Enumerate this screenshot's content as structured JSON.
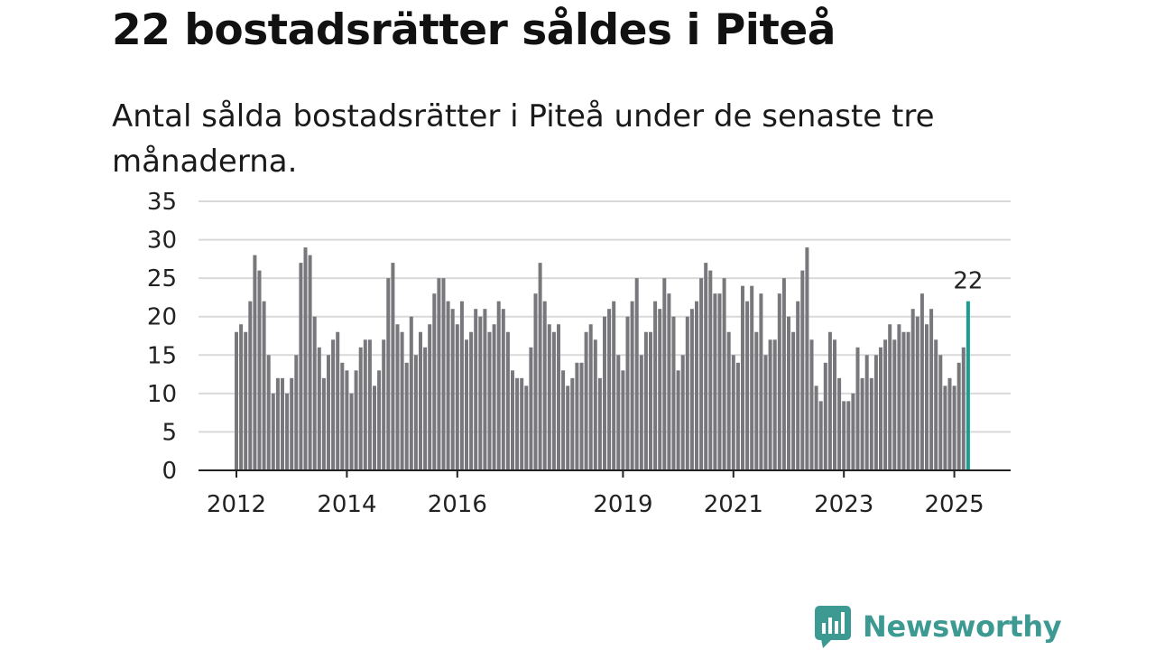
{
  "header": {
    "title": "22 bostadsrätter såldes i Piteå",
    "subtitle": "Antal sålda bostadsrätter i Piteå under de senaste tre månaderna."
  },
  "brand": {
    "name": "Newsworthy",
    "color": "#3d9a93"
  },
  "colors": {
    "bar": "#77777c",
    "highlight": "#1a9d91",
    "grid": "#d9d9d9",
    "axis": "#222222"
  },
  "chart_data": {
    "type": "bar",
    "title": "",
    "xlabel": "",
    "ylabel": "",
    "ylim": [
      0,
      35
    ],
    "yticks": [
      0,
      5,
      10,
      15,
      20,
      25,
      30,
      35
    ],
    "grid": true,
    "x_tick_labels": [
      "2012",
      "2014",
      "2016",
      "2019",
      "2021",
      "2023",
      "2025"
    ],
    "highlight_label": "22",
    "series": [
      {
        "values": [
          18,
          19,
          18,
          22,
          28,
          26,
          22,
          15,
          10,
          12,
          12,
          10,
          12,
          15,
          27,
          29,
          28,
          20,
          16,
          12,
          15,
          17,
          18,
          14,
          13,
          10,
          13,
          16,
          17,
          17,
          11,
          13,
          17,
          25,
          27,
          19,
          18,
          14,
          20,
          15,
          18,
          16,
          19,
          23,
          25,
          25,
          22,
          21,
          19,
          22,
          17,
          18,
          21,
          20,
          21,
          18,
          19,
          22,
          21,
          18,
          13,
          12,
          12,
          11,
          16,
          23,
          27,
          22,
          19,
          18,
          19,
          13,
          11,
          12,
          14,
          14,
          18,
          19,
          17,
          12,
          20,
          21,
          22,
          15,
          13,
          20,
          22,
          25,
          15,
          18,
          18,
          22,
          21,
          25,
          23,
          20,
          13,
          15,
          20,
          21,
          22,
          25,
          27,
          26,
          23,
          23,
          25,
          18,
          15,
          14,
          24,
          22,
          24,
          18,
          23,
          15,
          17,
          17,
          23,
          25,
          20,
          18,
          22,
          26,
          29,
          17,
          11,
          9,
          14,
          18,
          17,
          12,
          9,
          9,
          10,
          16,
          12,
          15,
          12,
          15,
          16,
          17,
          19,
          17,
          19,
          18,
          18,
          21,
          20,
          23,
          19,
          21,
          17,
          15,
          11,
          12,
          11,
          14,
          16,
          22
        ]
      }
    ]
  }
}
